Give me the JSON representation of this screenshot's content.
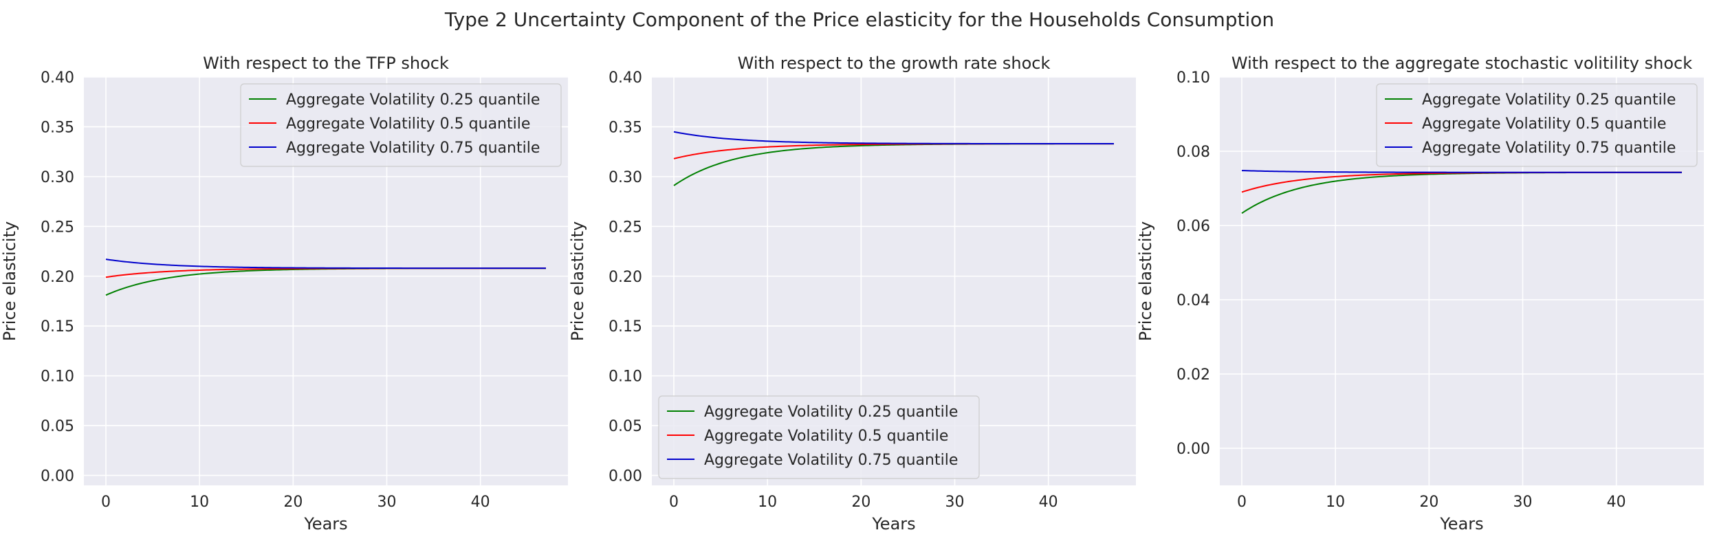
{
  "figure": {
    "suptitle": "Type 2 Uncertainty Component of the Price elasticity for the Households Consumption"
  },
  "colors": {
    "background": "#eaeaf2",
    "grid": "#ffffff",
    "q25": "#008000",
    "q50": "#ff0000",
    "q75": "#0000cc"
  },
  "chart_data": [
    {
      "type": "line",
      "title": "With respect to the TFP shock",
      "xlabel": "Years",
      "ylabel": "Price elasticity",
      "xlim": [
        -2.35,
        49.35
      ],
      "ylim": [
        -0.01,
        0.4
      ],
      "xticks": [
        0,
        10,
        20,
        30,
        40
      ],
      "xtick_labels": [
        "0",
        "10",
        "20",
        "30",
        "40"
      ],
      "yticks": [
        0.0,
        0.05,
        0.1,
        0.15,
        0.2,
        0.25,
        0.3,
        0.35,
        0.4
      ],
      "ytick_labels": [
        "0.00",
        "0.05",
        "0.10",
        "0.15",
        "0.20",
        "0.25",
        "0.30",
        "0.35",
        "0.40"
      ],
      "legend_loc": "upper right",
      "x_range": [
        0,
        47
      ],
      "series": [
        {
          "name": "Aggregate Volatility 0.25 quantile",
          "color_key": "q25",
          "start": 0.181,
          "end": 0.208,
          "tau": 6.5
        },
        {
          "name": "Aggregate Volatility 0.5 quantile",
          "color_key": "q50",
          "start": 0.199,
          "end": 0.208,
          "tau": 6.5
        },
        {
          "name": "Aggregate Volatility 0.75 quantile",
          "color_key": "q75",
          "start": 0.217,
          "end": 0.208,
          "tau": 6.5
        }
      ]
    },
    {
      "type": "line",
      "title": "With respect to the growth rate shock",
      "xlabel": "Years",
      "ylabel": "Price elasticity",
      "xlim": [
        -2.35,
        49.35
      ],
      "ylim": [
        -0.01,
        0.4
      ],
      "xticks": [
        0,
        10,
        20,
        30,
        40
      ],
      "xtick_labels": [
        "0",
        "10",
        "20",
        "30",
        "40"
      ],
      "yticks": [
        0.0,
        0.05,
        0.1,
        0.15,
        0.2,
        0.25,
        0.3,
        0.35,
        0.4
      ],
      "ytick_labels": [
        "0.00",
        "0.05",
        "0.10",
        "0.15",
        "0.20",
        "0.25",
        "0.30",
        "0.35",
        "0.40"
      ],
      "legend_loc": "lower left",
      "x_range": [
        0,
        47
      ],
      "series": [
        {
          "name": "Aggregate Volatility 0.25 quantile",
          "color_key": "q25",
          "start": 0.291,
          "end": 0.333,
          "tau": 6.5
        },
        {
          "name": "Aggregate Volatility 0.5 quantile",
          "color_key": "q50",
          "start": 0.318,
          "end": 0.333,
          "tau": 6.5
        },
        {
          "name": "Aggregate Volatility 0.75 quantile",
          "color_key": "q75",
          "start": 0.345,
          "end": 0.333,
          "tau": 6.5
        }
      ]
    },
    {
      "type": "line",
      "title": "With respect to the aggregate stochastic volitility shock",
      "xlabel": "Years",
      "ylabel": "Price elasticity",
      "xlim": [
        -2.35,
        49.35
      ],
      "ylim": [
        -0.01,
        0.1
      ],
      "xticks": [
        0,
        10,
        20,
        30,
        40
      ],
      "xtick_labels": [
        "0",
        "10",
        "20",
        "30",
        "40"
      ],
      "yticks": [
        0.0,
        0.02,
        0.04,
        0.06,
        0.08,
        0.1
      ],
      "ytick_labels": [
        "0.00",
        "0.02",
        "0.04",
        "0.06",
        "0.08",
        "0.10"
      ],
      "legend_loc": "upper right",
      "x_range": [
        0,
        47
      ],
      "series": [
        {
          "name": "Aggregate Volatility 0.25 quantile",
          "color_key": "q25",
          "start": 0.0633,
          "end": 0.0743,
          "tau": 6.5
        },
        {
          "name": "Aggregate Volatility 0.5 quantile",
          "color_key": "q50",
          "start": 0.069,
          "end": 0.0743,
          "tau": 6.5
        },
        {
          "name": "Aggregate Volatility 0.75 quantile",
          "color_key": "q75",
          "start": 0.0748,
          "end": 0.0743,
          "tau": 6.5
        }
      ]
    }
  ]
}
